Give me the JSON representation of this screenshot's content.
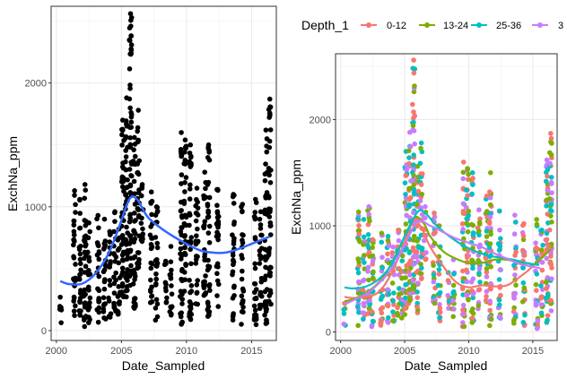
{
  "chart_data": [
    {
      "type": "scatter",
      "xlabel": "Date_Sampled",
      "ylabel": "ExchNa_ppm",
      "xlim": [
        1999.6,
        2016.9
      ],
      "ylim": [
        -80,
        2620
      ],
      "x_ticks": [
        2000,
        2005,
        2010,
        2015
      ],
      "y_ticks": [
        0,
        1000,
        2000
      ],
      "grid": true,
      "point_color": "#000000",
      "smooth_color": "#3366FF",
      "x_groups": [
        2000.3,
        2001.4,
        2001.8,
        2002.2,
        2002.5,
        2003.2,
        2003.7,
        2004.1,
        2004.5,
        2004.8,
        2005.1,
        2005.4,
        2005.7,
        2006.0,
        2006.3,
        2006.6,
        2007.3,
        2007.7,
        2008.4,
        2008.8,
        2009.6,
        2009.9,
        2010.3,
        2010.8,
        2011.4,
        2011.7,
        2012.4,
        2013.6,
        2014.3,
        2015.3,
        2015.7,
        2016.1,
        2016.4
      ],
      "group_ranges": [
        [
          40,
          270
        ],
        [
          60,
          1130
        ],
        [
          120,
          1060
        ],
        [
          30,
          1180
        ],
        [
          50,
          870
        ],
        [
          60,
          930
        ],
        [
          80,
          900
        ],
        [
          100,
          800
        ],
        [
          150,
          960
        ],
        [
          130,
          820
        ],
        [
          160,
          1700
        ],
        [
          270,
          1880
        ],
        [
          360,
          2560
        ],
        [
          180,
          1560
        ],
        [
          500,
          1780
        ],
        [
          680,
          1180
        ],
        [
          220,
          1120
        ],
        [
          80,
          1000
        ],
        [
          220,
          560
        ],
        [
          120,
          680
        ],
        [
          50,
          1600
        ],
        [
          280,
          1540
        ],
        [
          80,
          1500
        ],
        [
          200,
          1150
        ],
        [
          280,
          1280
        ],
        [
          60,
          1500
        ],
        [
          120,
          1140
        ],
        [
          80,
          1100
        ],
        [
          50,
          1020
        ],
        [
          30,
          1060
        ],
        [
          120,
          960
        ],
        [
          40,
          1620
        ],
        [
          180,
          1870
        ]
      ],
      "smooth_x": [
        2000.3,
        2001,
        2002,
        2003,
        2004,
        2004.8,
        2005.6,
        2006.2,
        2007,
        2008,
        2009,
        2010,
        2011,
        2012,
        2013,
        2014,
        2015,
        2016.4
      ],
      "smooth_y": [
        400,
        375,
        380,
        460,
        620,
        830,
        1060,
        1060,
        920,
        830,
        760,
        700,
        650,
        630,
        630,
        660,
        700,
        760
      ]
    },
    {
      "type": "scatter",
      "xlabel": "Date_Sampled",
      "ylabel": "ExchNa_ppm",
      "xlim": [
        1999.6,
        2016.9
      ],
      "ylim": [
        -80,
        2620
      ],
      "x_ticks": [
        2000,
        2005,
        2010,
        2015
      ],
      "y_ticks": [
        0,
        1000,
        2000
      ],
      "grid": true,
      "legend": {
        "title": "Depth_1",
        "position": "top",
        "entries": [
          {
            "label": "0-12",
            "color": "#F8766D"
          },
          {
            "label": "13-24",
            "color": "#7CAE00"
          },
          {
            "label": "25-36",
            "color": "#00BFC4"
          },
          {
            "label": "3",
            "color": "#C77CFF"
          }
        ]
      },
      "series": [
        {
          "name": "0-12",
          "smooth_x": [
            2000.3,
            2001,
            2002,
            2003,
            2004,
            2005,
            2005.7,
            2006.3,
            2007,
            2008,
            2009,
            2010,
            2011,
            2012,
            2013,
            2014,
            2015,
            2016.4
          ],
          "smooth_y": [
            330,
            320,
            330,
            380,
            560,
            850,
            1050,
            980,
            800,
            620,
            470,
            420,
            440,
            430,
            440,
            520,
            620,
            820
          ]
        },
        {
          "name": "13-24",
          "smooth_x": [
            2000.3,
            2001,
            2002,
            2003,
            2004,
            2005,
            2005.8,
            2006.5,
            2007,
            2008,
            2009,
            2010,
            2011,
            2012,
            2013,
            2014,
            2015,
            2016.4
          ],
          "smooth_y": [
            290,
            310,
            370,
            470,
            650,
            900,
            1080,
            1020,
            900,
            760,
            690,
            650,
            650,
            680,
            680,
            650,
            630,
            780
          ]
        },
        {
          "name": "25-36",
          "smooth_x": [
            2000.3,
            2001,
            2002,
            2003,
            2004,
            2005,
            2006,
            2006.6,
            2007.5,
            2008.5,
            2009.5,
            2010.5,
            2011.5,
            2012.5,
            2013.5,
            2014.5,
            2015.5
          ],
          "smooth_y": [
            420,
            410,
            430,
            500,
            640,
            900,
            1130,
            1120,
            1000,
            900,
            820,
            760,
            720,
            700,
            680,
            650,
            630
          ]
        },
        {
          "name": "3",
          "smooth_x": [
            2000.3,
            2001,
            2002,
            2003,
            2004,
            2005,
            2006,
            2007,
            2008,
            2009,
            2010,
            2011,
            2012,
            2013,
            2014,
            2015.6
          ],
          "smooth_y": [
            260,
            300,
            360,
            460,
            600,
            820,
            1040,
            1000,
            940,
            880,
            840,
            800,
            740,
            690,
            640,
            600
          ]
        }
      ],
      "x_groups": [
        2000.3,
        2001.4,
        2001.8,
        2002.2,
        2002.5,
        2003.2,
        2003.7,
        2004.1,
        2004.5,
        2004.8,
        2005.1,
        2005.4,
        2005.7,
        2006.0,
        2006.3,
        2006.6,
        2007.3,
        2007.7,
        2008.4,
        2008.8,
        2009.6,
        2009.9,
        2010.3,
        2010.8,
        2011.4,
        2011.7,
        2012.4,
        2013.6,
        2014.3,
        2015.3,
        2015.7,
        2016.1,
        2016.4
      ],
      "group_ranges": [
        [
          40,
          270
        ],
        [
          60,
          1130
        ],
        [
          120,
          1060
        ],
        [
          30,
          1180
        ],
        [
          50,
          870
        ],
        [
          60,
          930
        ],
        [
          80,
          900
        ],
        [
          100,
          800
        ],
        [
          150,
          960
        ],
        [
          130,
          820
        ],
        [
          160,
          1700
        ],
        [
          270,
          1880
        ],
        [
          360,
          2560
        ],
        [
          180,
          1560
        ],
        [
          500,
          1780
        ],
        [
          680,
          1180
        ],
        [
          220,
          1120
        ],
        [
          80,
          1000
        ],
        [
          220,
          560
        ],
        [
          120,
          680
        ],
        [
          50,
          1600
        ],
        [
          280,
          1540
        ],
        [
          80,
          1500
        ],
        [
          200,
          1150
        ],
        [
          280,
          1280
        ],
        [
          60,
          1500
        ],
        [
          120,
          1140
        ],
        [
          80,
          1100
        ],
        [
          50,
          1020
        ],
        [
          30,
          1060
        ],
        [
          120,
          960
        ],
        [
          40,
          1620
        ],
        [
          180,
          1870
        ]
      ]
    }
  ]
}
